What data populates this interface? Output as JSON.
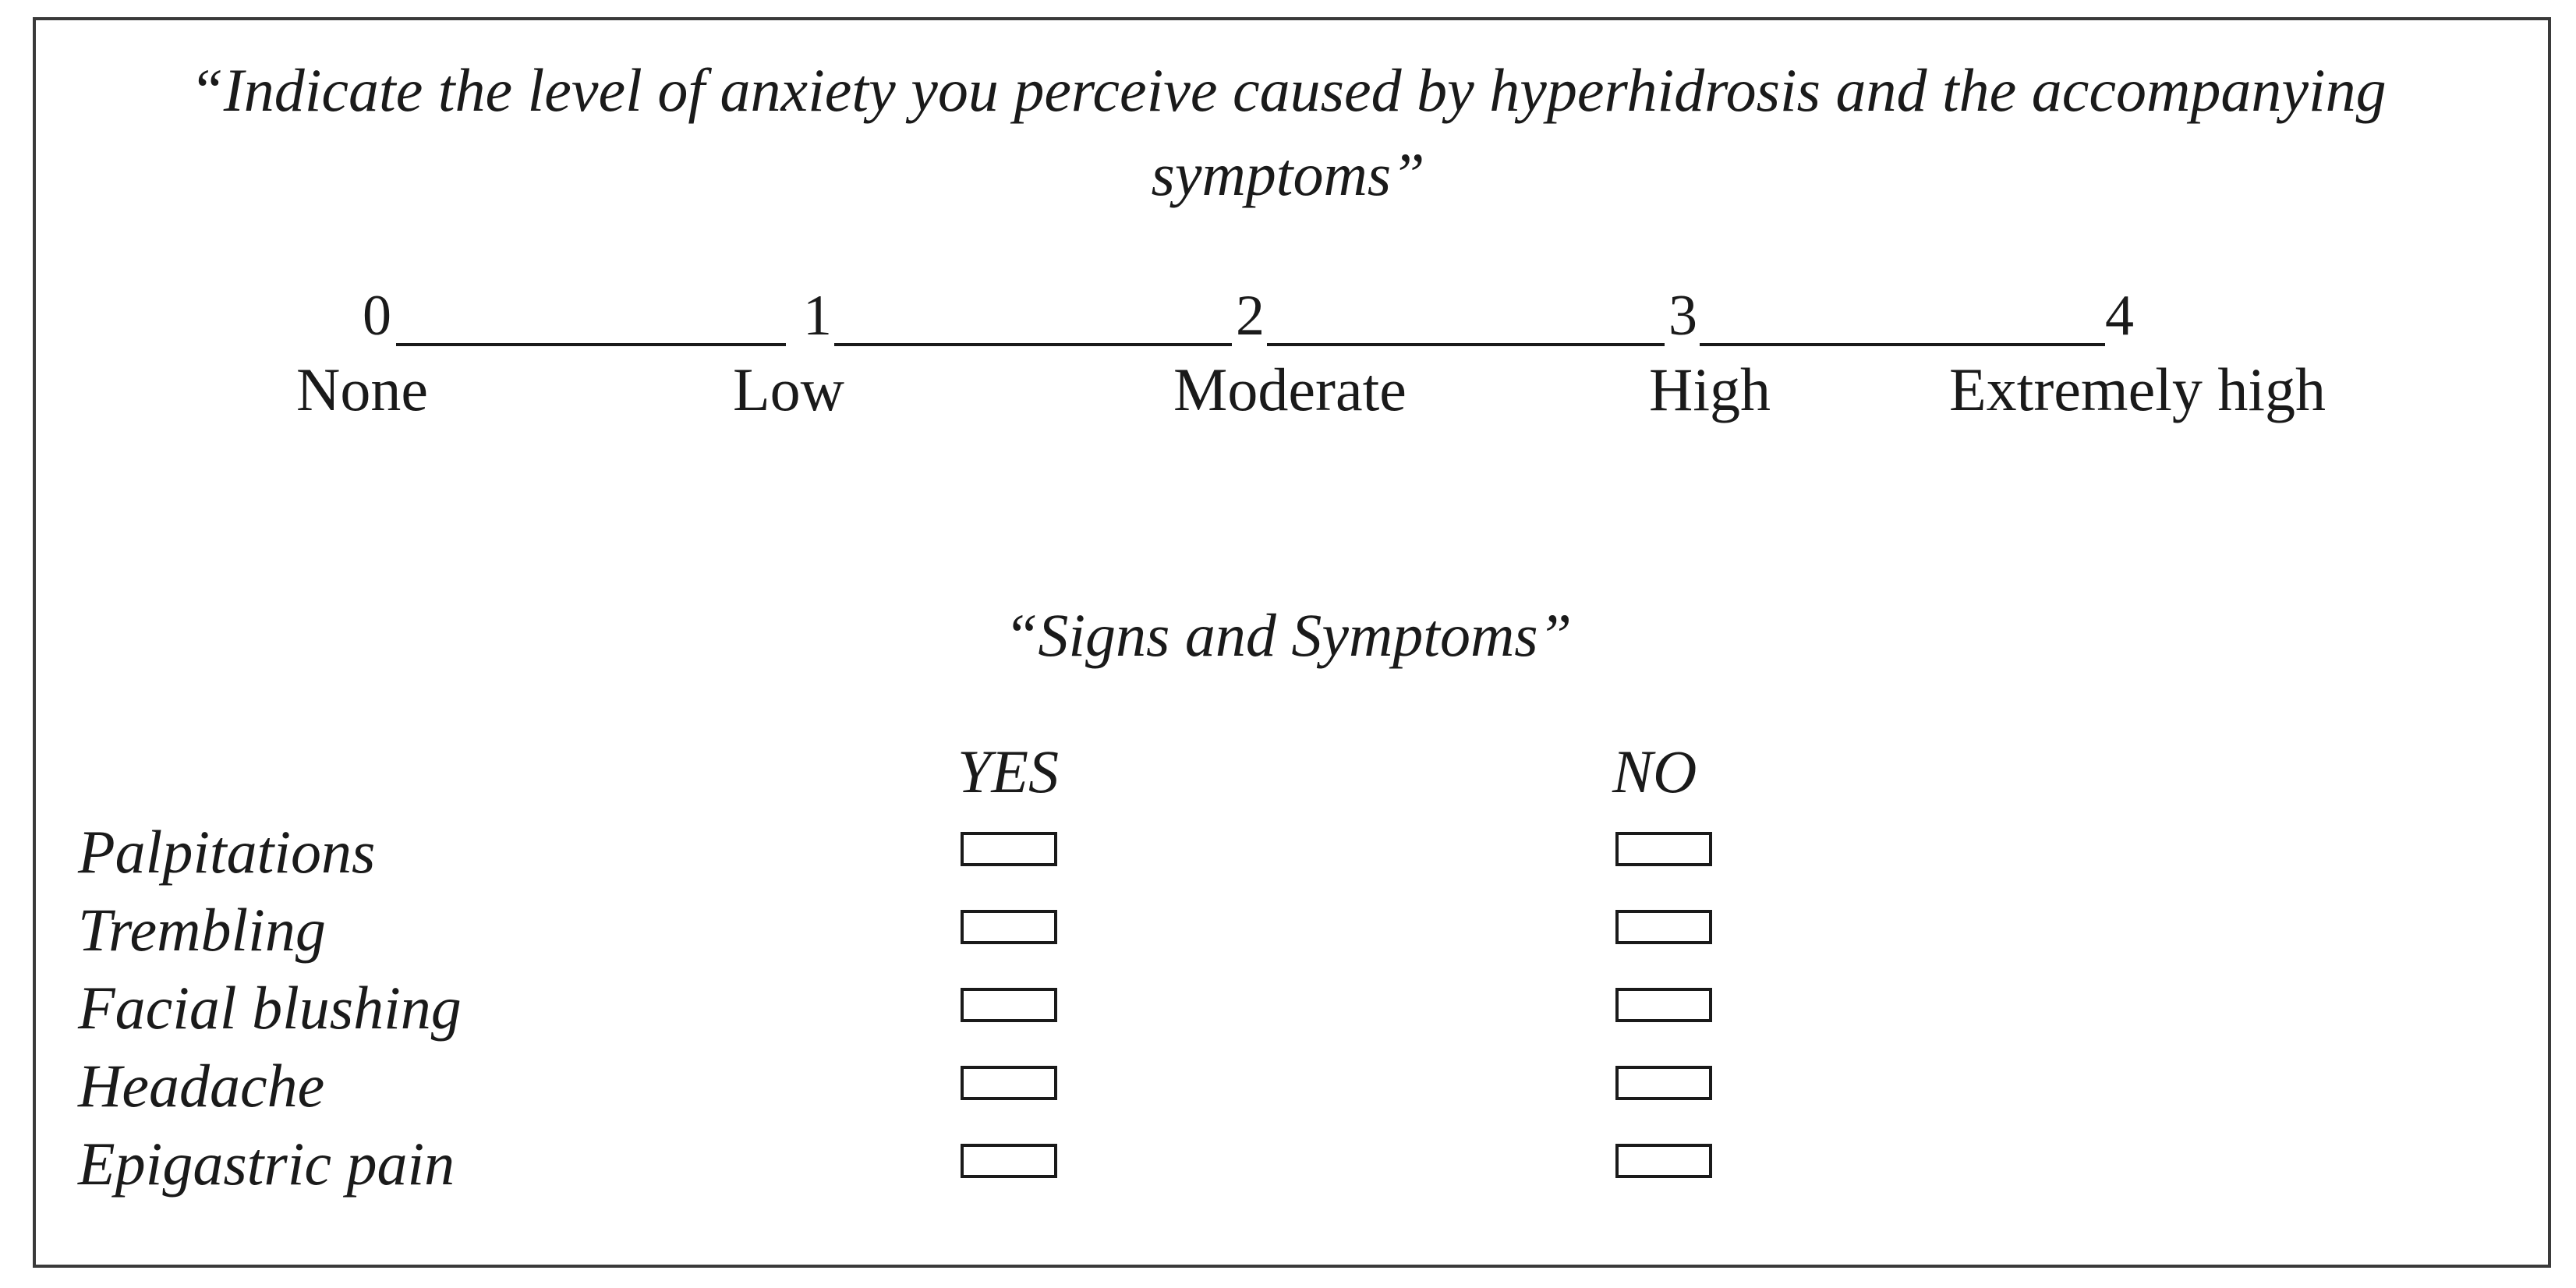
{
  "question": {
    "line1": "“Indicate the level of anxiety you perceive caused by hyperhidrosis and the accompanying",
    "line2": "symptoms”"
  },
  "scale": {
    "points": [
      {
        "number": "0",
        "label": "None"
      },
      {
        "number": "1",
        "label": "Low"
      },
      {
        "number": "2",
        "label": "Moderate"
      },
      {
        "number": "3",
        "label": "High"
      },
      {
        "number": "4",
        "label": "Extremely high"
      }
    ]
  },
  "signs_section": {
    "title": "“Signs and Symptoms”",
    "yes_header": "YES",
    "no_header": "NO",
    "symptoms": [
      {
        "label": "Palpitations"
      },
      {
        "label": "Trembling"
      },
      {
        "label": "Facial blushing"
      },
      {
        "label": "Headache"
      },
      {
        "label": "Epigastric pain"
      }
    ]
  }
}
